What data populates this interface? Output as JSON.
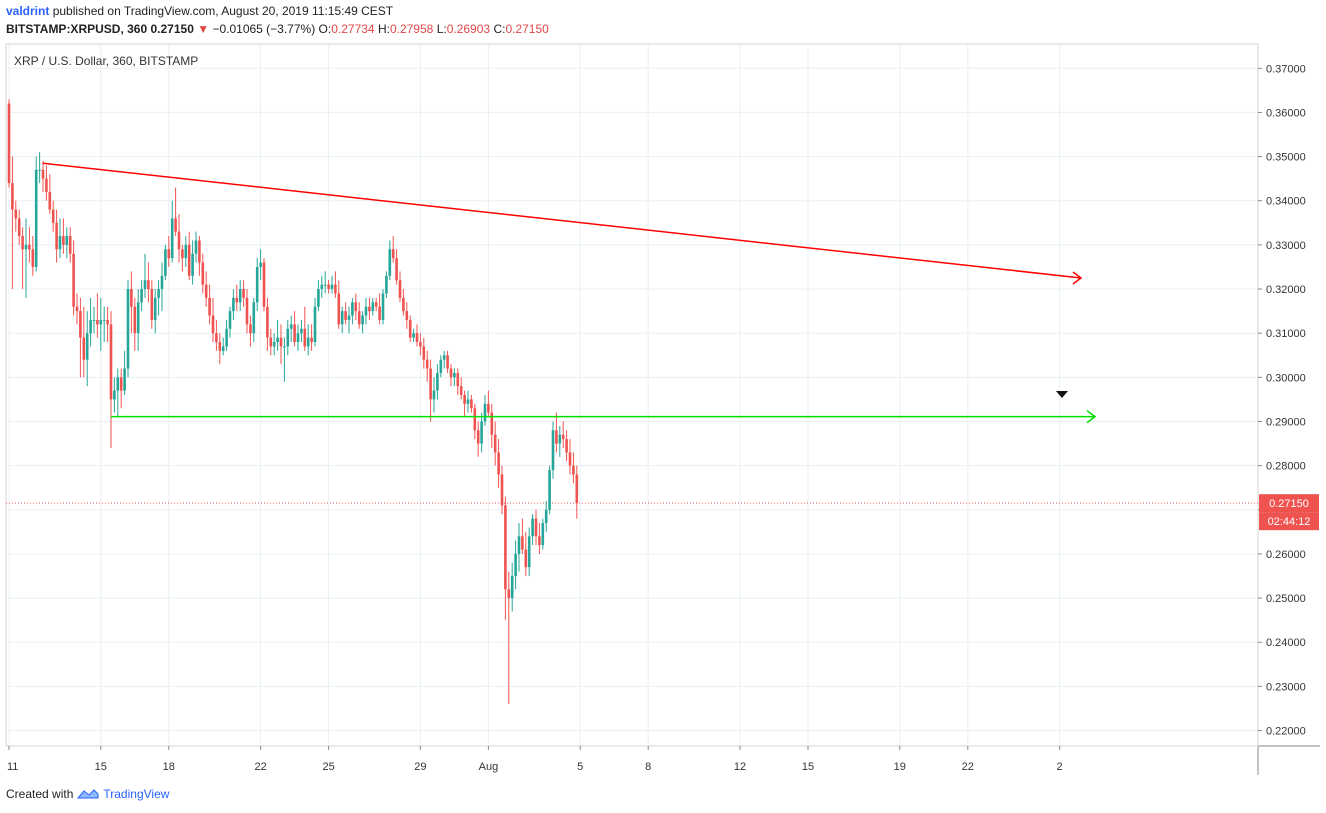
{
  "header": {
    "author": "valdrint",
    "published_text": "published on TradingView.com, August 20, 2019 11:15:49 CEST",
    "symbol": "BITSTAMP:XRPUSD, 360",
    "last": "0.27150",
    "change": "−0.01065 (−3.77%)",
    "o_label": "O:",
    "o_value": "0.27734",
    "h_label": "H:",
    "h_value": "0.27958",
    "l_label": "L:",
    "l_value": "0.26903",
    "c_label": "C:",
    "c_value": "0.27150"
  },
  "footer": {
    "created_with": "Created with",
    "brand": "TradingView"
  },
  "colors": {
    "up": "#26a69a",
    "down": "#ef5350",
    "resistance": "#ff0000",
    "support": "#00e000",
    "grid": "#e8f0f4",
    "price_line": "#ef5350"
  },
  "chart_data": {
    "type": "candlestick",
    "title": "XRP / U.S. Dollar, 360, BITSTAMP",
    "y_ticks": [
      "0.37000",
      "0.36000",
      "0.35000",
      "0.34000",
      "0.33000",
      "0.32000",
      "0.31000",
      "0.30000",
      "0.29000",
      "0.28000",
      "0.27000",
      "0.26000",
      "0.25000",
      "0.24000",
      "0.23000",
      "0.22000"
    ],
    "ylim": [
      0.2165,
      0.3755
    ],
    "x_ticks": [
      {
        "i": 0,
        "label": "11"
      },
      {
        "i": 27,
        "label": "15"
      },
      {
        "i": 47,
        "label": "18"
      },
      {
        "i": 74,
        "label": "22"
      },
      {
        "i": 94,
        "label": "25"
      },
      {
        "i": 121,
        "label": "29"
      },
      {
        "i": 141,
        "label": "Aug"
      },
      {
        "i": 168,
        "label": "5"
      },
      {
        "i": 188,
        "label": "8"
      },
      {
        "i": 215,
        "label": "12"
      },
      {
        "i": 235,
        "label": "15"
      },
      {
        "i": 262,
        "label": "19"
      },
      {
        "i": 282,
        "label": "22"
      },
      {
        "i": 309,
        "label": "2"
      }
    ],
    "last_price": 0.2715,
    "last_price_label": "0.27150",
    "countdown": "02:44:12",
    "candles": [
      [
        0.362,
        0.363,
        0.343,
        0.344
      ],
      [
        0.344,
        0.35,
        0.32,
        0.338
      ],
      [
        0.338,
        0.34,
        0.333,
        0.336
      ],
      [
        0.336,
        0.338,
        0.33,
        0.332
      ],
      [
        0.332,
        0.334,
        0.32,
        0.329
      ],
      [
        0.329,
        0.336,
        0.318,
        0.33
      ],
      [
        0.33,
        0.334,
        0.326,
        0.329
      ],
      [
        0.329,
        0.332,
        0.323,
        0.325
      ],
      [
        0.325,
        0.35,
        0.324,
        0.347
      ],
      [
        0.347,
        0.351,
        0.344,
        0.347
      ],
      [
        0.347,
        0.349,
        0.342,
        0.345
      ],
      [
        0.345,
        0.348,
        0.34,
        0.342
      ],
      [
        0.342,
        0.346,
        0.337,
        0.338
      ],
      [
        0.338,
        0.34,
        0.333,
        0.335
      ],
      [
        0.335,
        0.338,
        0.326,
        0.329
      ],
      [
        0.329,
        0.336,
        0.327,
        0.332
      ],
      [
        0.332,
        0.336,
        0.328,
        0.33
      ],
      [
        0.33,
        0.334,
        0.327,
        0.332
      ],
      [
        0.332,
        0.334,
        0.326,
        0.328
      ],
      [
        0.328,
        0.331,
        0.314,
        0.316
      ],
      [
        0.316,
        0.319,
        0.312,
        0.315
      ],
      [
        0.315,
        0.318,
        0.3,
        0.309
      ],
      [
        0.309,
        0.316,
        0.3,
        0.304
      ],
      [
        0.304,
        0.315,
        0.298,
        0.31
      ],
      [
        0.31,
        0.318,
        0.307,
        0.313
      ],
      [
        0.313,
        0.316,
        0.31,
        0.313
      ],
      [
        0.313,
        0.319,
        0.309,
        0.312
      ],
      [
        0.312,
        0.318,
        0.306,
        0.313
      ],
      [
        0.313,
        0.316,
        0.308,
        0.313
      ],
      [
        0.313,
        0.316,
        0.308,
        0.312
      ],
      [
        0.312,
        0.315,
        0.284,
        0.295
      ],
      [
        0.295,
        0.3,
        0.292,
        0.297
      ],
      [
        0.297,
        0.302,
        0.291,
        0.3
      ],
      [
        0.3,
        0.302,
        0.293,
        0.297
      ],
      [
        0.297,
        0.306,
        0.296,
        0.302
      ],
      [
        0.302,
        0.322,
        0.3,
        0.32
      ],
      [
        0.32,
        0.324,
        0.31,
        0.316
      ],
      [
        0.316,
        0.318,
        0.306,
        0.31
      ],
      [
        0.31,
        0.32,
        0.306,
        0.317
      ],
      [
        0.317,
        0.322,
        0.315,
        0.32
      ],
      [
        0.32,
        0.328,
        0.318,
        0.322
      ],
      [
        0.322,
        0.326,
        0.317,
        0.32
      ],
      [
        0.32,
        0.322,
        0.311,
        0.313
      ],
      [
        0.313,
        0.32,
        0.31,
        0.318
      ],
      [
        0.318,
        0.322,
        0.314,
        0.32
      ],
      [
        0.32,
        0.326,
        0.315,
        0.323
      ],
      [
        0.323,
        0.33,
        0.322,
        0.329
      ],
      [
        0.329,
        0.332,
        0.325,
        0.327
      ],
      [
        0.327,
        0.34,
        0.326,
        0.336
      ],
      [
        0.336,
        0.343,
        0.332,
        0.333
      ],
      [
        0.333,
        0.337,
        0.326,
        0.329
      ],
      [
        0.329,
        0.33,
        0.324,
        0.327
      ],
      [
        0.327,
        0.332,
        0.325,
        0.33
      ],
      [
        0.33,
        0.333,
        0.322,
        0.323
      ],
      [
        0.323,
        0.331,
        0.321,
        0.328
      ],
      [
        0.328,
        0.333,
        0.326,
        0.331
      ],
      [
        0.331,
        0.332,
        0.323,
        0.326
      ],
      [
        0.326,
        0.328,
        0.319,
        0.321
      ],
      [
        0.321,
        0.324,
        0.316,
        0.318
      ],
      [
        0.318,
        0.321,
        0.312,
        0.314
      ],
      [
        0.314,
        0.318,
        0.308,
        0.31
      ],
      [
        0.31,
        0.313,
        0.306,
        0.308
      ],
      [
        0.308,
        0.31,
        0.303,
        0.306
      ],
      [
        0.306,
        0.309,
        0.305,
        0.307
      ],
      [
        0.307,
        0.313,
        0.306,
        0.311
      ],
      [
        0.311,
        0.316,
        0.309,
        0.315
      ],
      [
        0.315,
        0.32,
        0.313,
        0.318
      ],
      [
        0.318,
        0.321,
        0.315,
        0.317
      ],
      [
        0.317,
        0.322,
        0.315,
        0.32
      ],
      [
        0.32,
        0.322,
        0.316,
        0.318
      ],
      [
        0.318,
        0.32,
        0.31,
        0.312
      ],
      [
        0.312,
        0.314,
        0.307,
        0.31
      ],
      [
        0.31,
        0.318,
        0.308,
        0.317
      ],
      [
        0.317,
        0.327,
        0.315,
        0.325
      ],
      [
        0.325,
        0.329,
        0.322,
        0.326
      ],
      [
        0.326,
        0.327,
        0.315,
        0.316
      ],
      [
        0.316,
        0.318,
        0.306,
        0.309
      ],
      [
        0.309,
        0.311,
        0.305,
        0.307
      ],
      [
        0.307,
        0.31,
        0.305,
        0.308
      ],
      [
        0.308,
        0.313,
        0.306,
        0.309
      ],
      [
        0.309,
        0.312,
        0.303,
        0.307
      ],
      [
        0.307,
        0.309,
        0.299,
        0.307
      ],
      [
        0.307,
        0.313,
        0.305,
        0.311
      ],
      [
        0.311,
        0.314,
        0.308,
        0.312
      ],
      [
        0.312,
        0.315,
        0.307,
        0.308
      ],
      [
        0.308,
        0.312,
        0.306,
        0.31
      ],
      [
        0.31,
        0.313,
        0.308,
        0.311
      ],
      [
        0.311,
        0.316,
        0.306,
        0.307
      ],
      [
        0.307,
        0.312,
        0.305,
        0.309
      ],
      [
        0.309,
        0.312,
        0.306,
        0.308
      ],
      [
        0.308,
        0.318,
        0.307,
        0.316
      ],
      [
        0.316,
        0.322,
        0.315,
        0.32
      ],
      [
        0.32,
        0.323,
        0.318,
        0.321
      ],
      [
        0.321,
        0.324,
        0.319,
        0.321
      ],
      [
        0.321,
        0.322,
        0.319,
        0.32
      ],
      [
        0.32,
        0.323,
        0.319,
        0.321
      ],
      [
        0.321,
        0.324,
        0.318,
        0.319
      ],
      [
        0.319,
        0.322,
        0.311,
        0.312
      ],
      [
        0.312,
        0.316,
        0.31,
        0.315
      ],
      [
        0.315,
        0.317,
        0.312,
        0.313
      ],
      [
        0.313,
        0.316,
        0.31,
        0.314
      ],
      [
        0.314,
        0.318,
        0.312,
        0.317
      ],
      [
        0.317,
        0.319,
        0.313,
        0.315
      ],
      [
        0.315,
        0.317,
        0.311,
        0.312
      ],
      [
        0.312,
        0.315,
        0.31,
        0.314
      ],
      [
        0.314,
        0.318,
        0.312,
        0.316
      ],
      [
        0.316,
        0.318,
        0.313,
        0.315
      ],
      [
        0.315,
        0.318,
        0.314,
        0.317
      ],
      [
        0.317,
        0.318,
        0.315,
        0.316
      ],
      [
        0.316,
        0.319,
        0.312,
        0.313
      ],
      [
        0.313,
        0.32,
        0.312,
        0.319
      ],
      [
        0.319,
        0.324,
        0.318,
        0.323
      ],
      [
        0.323,
        0.331,
        0.322,
        0.329
      ],
      [
        0.329,
        0.332,
        0.326,
        0.327
      ],
      [
        0.327,
        0.329,
        0.321,
        0.322
      ],
      [
        0.322,
        0.324,
        0.317,
        0.318
      ],
      [
        0.318,
        0.32,
        0.314,
        0.315
      ],
      [
        0.315,
        0.317,
        0.311,
        0.313
      ],
      [
        0.313,
        0.314,
        0.308,
        0.309
      ],
      [
        0.309,
        0.311,
        0.308,
        0.31
      ],
      [
        0.31,
        0.312,
        0.307,
        0.308
      ],
      [
        0.308,
        0.31,
        0.305,
        0.307
      ],
      [
        0.307,
        0.309,
        0.302,
        0.304
      ],
      [
        0.304,
        0.306,
        0.299,
        0.302
      ],
      [
        0.302,
        0.304,
        0.29,
        0.295
      ],
      [
        0.295,
        0.3,
        0.292,
        0.297
      ],
      [
        0.297,
        0.303,
        0.295,
        0.301
      ],
      [
        0.301,
        0.305,
        0.3,
        0.304
      ],
      [
        0.304,
        0.306,
        0.302,
        0.305
      ],
      [
        0.305,
        0.306,
        0.301,
        0.302
      ],
      [
        0.302,
        0.303,
        0.298,
        0.3
      ],
      [
        0.3,
        0.302,
        0.298,
        0.301
      ],
      [
        0.301,
        0.302,
        0.296,
        0.298
      ],
      [
        0.298,
        0.3,
        0.295,
        0.296
      ],
      [
        0.296,
        0.297,
        0.291,
        0.294
      ],
      [
        0.294,
        0.297,
        0.292,
        0.295
      ],
      [
        0.295,
        0.296,
        0.292,
        0.293
      ],
      [
        0.293,
        0.294,
        0.286,
        0.288
      ],
      [
        0.288,
        0.29,
        0.282,
        0.285
      ],
      [
        0.285,
        0.292,
        0.283,
        0.29
      ],
      [
        0.29,
        0.296,
        0.289,
        0.294
      ],
      [
        0.294,
        0.297,
        0.291,
        0.292
      ],
      [
        0.292,
        0.294,
        0.284,
        0.287
      ],
      [
        0.287,
        0.29,
        0.28,
        0.283
      ],
      [
        0.283,
        0.286,
        0.275,
        0.278
      ],
      [
        0.278,
        0.28,
        0.269,
        0.271
      ],
      [
        0.271,
        0.273,
        0.245,
        0.252
      ],
      [
        0.252,
        0.256,
        0.226,
        0.25
      ],
      [
        0.25,
        0.258,
        0.247,
        0.255
      ],
      [
        0.255,
        0.263,
        0.252,
        0.26
      ],
      [
        0.26,
        0.267,
        0.256,
        0.264
      ],
      [
        0.264,
        0.268,
        0.26,
        0.261
      ],
      [
        0.261,
        0.265,
        0.255,
        0.257
      ],
      [
        0.257,
        0.266,
        0.255,
        0.264
      ],
      [
        0.264,
        0.269,
        0.262,
        0.268
      ],
      [
        0.268,
        0.27,
        0.262,
        0.264
      ],
      [
        0.264,
        0.267,
        0.26,
        0.262
      ],
      [
        0.262,
        0.268,
        0.261,
        0.267
      ],
      [
        0.267,
        0.272,
        0.265,
        0.27
      ],
      [
        0.27,
        0.28,
        0.269,
        0.279
      ],
      [
        0.279,
        0.29,
        0.277,
        0.288
      ],
      [
        0.288,
        0.292,
        0.283,
        0.285
      ],
      [
        0.285,
        0.289,
        0.282,
        0.287
      ],
      [
        0.287,
        0.29,
        0.284,
        0.286
      ],
      [
        0.286,
        0.288,
        0.281,
        0.283
      ],
      [
        0.283,
        0.286,
        0.278,
        0.28
      ],
      [
        0.28,
        0.283,
        0.276,
        0.278
      ],
      [
        0.278,
        0.28,
        0.268,
        0.2715
      ]
    ]
  }
}
